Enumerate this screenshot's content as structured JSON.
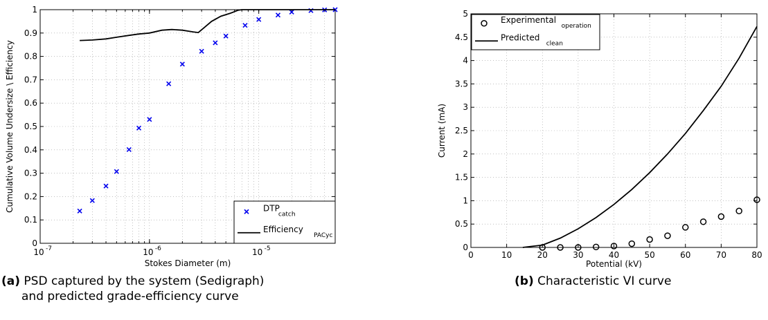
{
  "panels": [
    {
      "caption": {
        "tag": "(a)",
        "text": "PSD captured by the system (Sedigraph)",
        "text2": "and predicted grade-efficiency curve"
      },
      "chart_data": {
        "type": "scatter",
        "xlabel": "Stokes Diameter (m)",
        "ylabel": "Cumulative Volume Undersize \\ Efficiency",
        "xscale": "log",
        "xlim": [
          1e-07,
          5e-05
        ],
        "ylim": [
          0,
          1
        ],
        "x_ticks": [
          {
            "value": 1e-07,
            "base": "10",
            "exp": "-7"
          },
          {
            "value": 1e-06,
            "base": "10",
            "exp": "-6"
          },
          {
            "value": 1e-05,
            "base": "10",
            "exp": "-5"
          }
        ],
        "y_ticks": [
          "0",
          "0.1",
          "0.2",
          "0.3",
          "0.4",
          "0.5",
          "0.6",
          "0.7",
          "0.8",
          "0.9",
          "1"
        ],
        "grid": true,
        "legend_position": "bottom-right",
        "series": [
          {
            "name": "DTP",
            "name_sub": "catch",
            "marker": "x",
            "color": "#0000ee",
            "points": [
              [
                2.3e-07,
                0.138
              ],
              [
                3e-07,
                0.183
              ],
              [
                4e-07,
                0.245
              ],
              [
                5e-07,
                0.307
              ],
              [
                6.5e-07,
                0.401
              ],
              [
                8e-07,
                0.493
              ],
              [
                1e-06,
                0.53
              ],
              [
                1.5e-06,
                0.683
              ],
              [
                2e-06,
                0.767
              ],
              [
                3e-06,
                0.822
              ],
              [
                4e-06,
                0.858
              ],
              [
                5e-06,
                0.887
              ],
              [
                7.5e-06,
                0.933
              ],
              [
                1e-05,
                0.958
              ],
              [
                1.5e-05,
                0.977
              ],
              [
                2e-05,
                0.99
              ],
              [
                3e-05,
                0.996
              ],
              [
                4e-05,
                0.999
              ],
              [
                5e-05,
                1.0
              ]
            ]
          },
          {
            "name": "Efficiency",
            "name_sub": "PACyc",
            "marker": "line",
            "color": "#000000",
            "points": [
              [
                2.3e-07,
                0.868
              ],
              [
                3e-07,
                0.87
              ],
              [
                4e-07,
                0.875
              ],
              [
                5e-07,
                0.882
              ],
              [
                6.5e-07,
                0.89
              ],
              [
                8e-07,
                0.896
              ],
              [
                1e-06,
                0.9
              ],
              [
                1.3e-06,
                0.912
              ],
              [
                1.6e-06,
                0.915
              ],
              [
                2e-06,
                0.912
              ],
              [
                2.5e-06,
                0.905
              ],
              [
                2.8e-06,
                0.902
              ],
              [
                3.2e-06,
                0.925
              ],
              [
                3.7e-06,
                0.95
              ],
              [
                4.5e-06,
                0.972
              ],
              [
                5.5e-06,
                0.985
              ],
              [
                6.5e-06,
                0.998
              ],
              [
                7e-06,
                1.0
              ],
              [
                5e-05,
                1.0
              ]
            ]
          }
        ]
      }
    },
    {
      "caption": {
        "tag": "(b)",
        "text": "Characteristic VI curve",
        "text2": ""
      },
      "chart_data": {
        "type": "scatter",
        "xlabel": "Potential (kV)",
        "ylabel": "Current (mA)",
        "xlim": [
          0,
          80
        ],
        "ylim": [
          0,
          5
        ],
        "x_ticks": [
          "0",
          "10",
          "20",
          "30",
          "40",
          "50",
          "60",
          "70",
          "80"
        ],
        "y_ticks": [
          "0",
          "0.5",
          "1",
          "1.5",
          "2",
          "2.5",
          "3",
          "3.5",
          "4",
          "4.5",
          "5"
        ],
        "grid": true,
        "legend_position": "top-left",
        "series": [
          {
            "name": "Experimental",
            "name_sub": "operation",
            "marker": "o",
            "color": "#000000",
            "points": [
              [
                20,
                0.0
              ],
              [
                25,
                0.0
              ],
              [
                30,
                0.0
              ],
              [
                35,
                0.01
              ],
              [
                40,
                0.03
              ],
              [
                45,
                0.08
              ],
              [
                50,
                0.17
              ],
              [
                55,
                0.25
              ],
              [
                60,
                0.43
              ],
              [
                65,
                0.55
              ],
              [
                70,
                0.66
              ],
              [
                75,
                0.78
              ],
              [
                80,
                1.02
              ]
            ]
          },
          {
            "name": "Predicted",
            "name_sub": "clean",
            "marker": "line",
            "color": "#000000",
            "points": [
              [
                14.5,
                0.0
              ],
              [
                20,
                0.05
              ],
              [
                25,
                0.2
              ],
              [
                30,
                0.4
              ],
              [
                35,
                0.64
              ],
              [
                40,
                0.92
              ],
              [
                45,
                1.24
              ],
              [
                50,
                1.6
              ],
              [
                55,
                2.0
              ],
              [
                60,
                2.44
              ],
              [
                65,
                2.93
              ],
              [
                70,
                3.45
              ],
              [
                75,
                4.05
              ],
              [
                80,
                4.73
              ]
            ]
          }
        ]
      }
    }
  ]
}
